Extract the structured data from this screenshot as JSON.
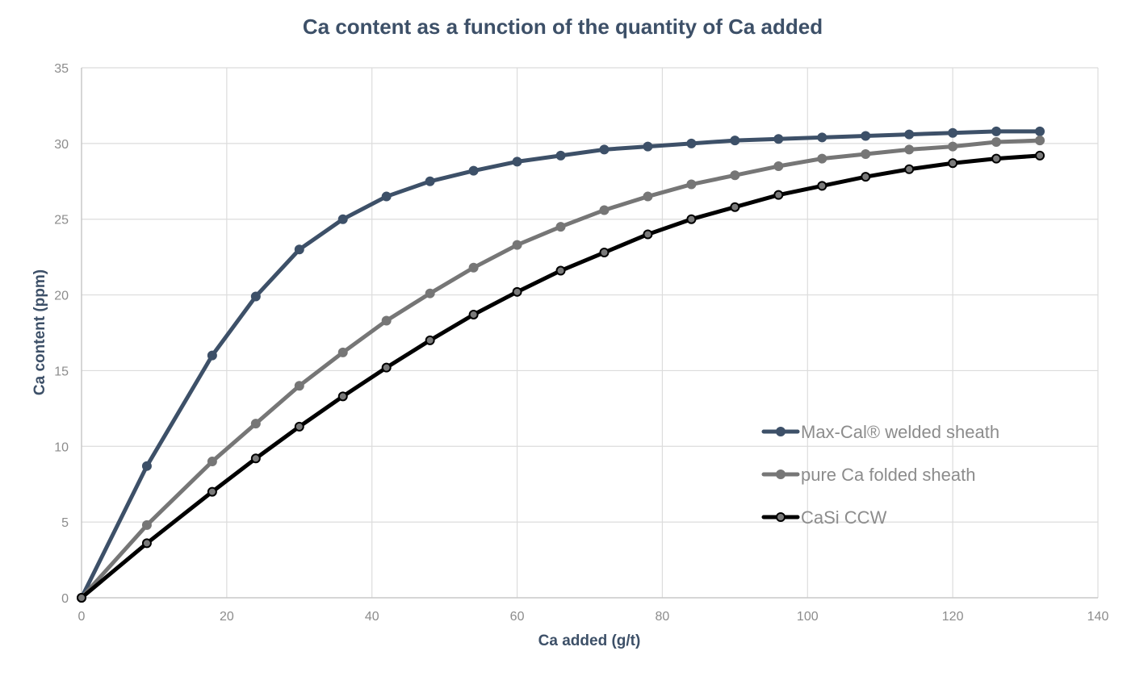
{
  "chart_data": {
    "type": "line",
    "title": "Ca content as a function of the quantity of Ca added",
    "xlabel": "Ca added  (g/t)",
    "ylabel": "Ca content (ppm)",
    "xlim": [
      0,
      140
    ],
    "ylim": [
      0,
      35
    ],
    "x_ticks": [
      "0",
      "20",
      "40",
      "60",
      "80",
      "100",
      "120",
      "140"
    ],
    "y_ticks": [
      "0",
      "5",
      "10",
      "15",
      "20",
      "25",
      "30",
      "35"
    ],
    "grid": true,
    "legend_position": "lower-right",
    "series": [
      {
        "name": "Max-Cal® welded sheath",
        "color": "#3d5068",
        "marker_color": "#3d5068",
        "points": [
          [
            0,
            0
          ],
          [
            9,
            8.7
          ],
          [
            18,
            16
          ],
          [
            24,
            19.9
          ],
          [
            30,
            23
          ],
          [
            36,
            25
          ],
          [
            42,
            26.5
          ],
          [
            48,
            27.5
          ],
          [
            54,
            28.2
          ],
          [
            60,
            28.8
          ],
          [
            66,
            29.2
          ],
          [
            72,
            29.6
          ],
          [
            78,
            29.8
          ],
          [
            84,
            30
          ],
          [
            90,
            30.2
          ],
          [
            96,
            30.3
          ],
          [
            102,
            30.4
          ],
          [
            108,
            30.5
          ],
          [
            114,
            30.6
          ],
          [
            120,
            30.7
          ],
          [
            126,
            30.8
          ],
          [
            132,
            30.8
          ]
        ]
      },
      {
        "name": "pure Ca folded sheath",
        "color": "#767676",
        "marker_color": "#767676",
        "points": [
          [
            0,
            0
          ],
          [
            9,
            4.8
          ],
          [
            18,
            9
          ],
          [
            24,
            11.5
          ],
          [
            30,
            14
          ],
          [
            36,
            16.2
          ],
          [
            42,
            18.3
          ],
          [
            48,
            20.1
          ],
          [
            54,
            21.8
          ],
          [
            60,
            23.3
          ],
          [
            66,
            24.5
          ],
          [
            72,
            25.6
          ],
          [
            78,
            26.5
          ],
          [
            84,
            27.3
          ],
          [
            90,
            27.9
          ],
          [
            96,
            28.5
          ],
          [
            102,
            29
          ],
          [
            108,
            29.3
          ],
          [
            114,
            29.6
          ],
          [
            120,
            29.8
          ],
          [
            126,
            30.1
          ],
          [
            132,
            30.2
          ]
        ]
      },
      {
        "name": "CaSi CCW",
        "color": "#000000",
        "marker_color": "#7a7a7a",
        "points": [
          [
            0,
            0
          ],
          [
            9,
            3.6
          ],
          [
            18,
            7
          ],
          [
            24,
            9.2
          ],
          [
            30,
            11.3
          ],
          [
            36,
            13.3
          ],
          [
            42,
            15.2
          ],
          [
            48,
            17
          ],
          [
            54,
            18.7
          ],
          [
            60,
            20.2
          ],
          [
            66,
            21.6
          ],
          [
            72,
            22.8
          ],
          [
            78,
            24
          ],
          [
            84,
            25
          ],
          [
            90,
            25.8
          ],
          [
            96,
            26.6
          ],
          [
            102,
            27.2
          ],
          [
            108,
            27.8
          ],
          [
            114,
            28.3
          ],
          [
            120,
            28.7
          ],
          [
            126,
            29
          ],
          [
            132,
            29.2
          ]
        ]
      }
    ],
    "colors": {
      "title": "#3d5068",
      "axis_title": "#3d5068",
      "tick_label": "#8c8c8c",
      "grid": "#dcdcdc",
      "axis": "#c8c8c8"
    }
  }
}
